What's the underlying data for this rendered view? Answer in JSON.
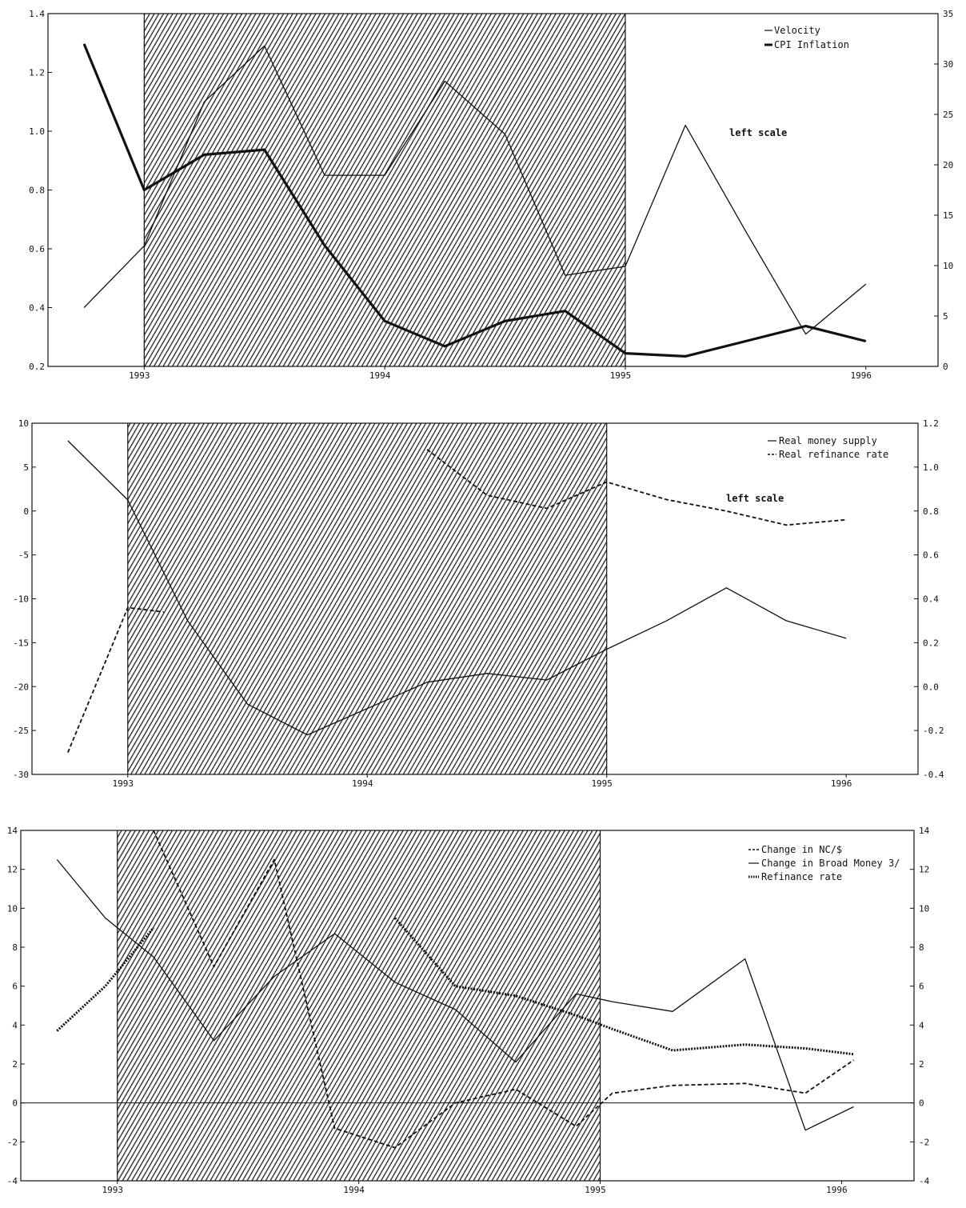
{
  "chart_data": [
    {
      "type": "line",
      "xlim": [
        1992.6,
        1996.3
      ],
      "x_ticks": [
        1993,
        1994,
        1995,
        1996
      ],
      "x_tick_labels": [
        "1993",
        "1994",
        "1995",
        "1996"
      ],
      "shaded_period": [
        1993.0,
        1995.0
      ],
      "left_axis": {
        "ylim": [
          0.2,
          1.4
        ],
        "ticks": [
          0.2,
          0.4,
          0.6,
          0.8,
          1.0,
          1.2,
          1.4
        ],
        "tick_labels": [
          "0.2",
          "0.4",
          "0.6",
          "0.8",
          "1.0",
          "1.2",
          "1.4"
        ]
      },
      "right_axis": {
        "ylim": [
          0,
          35
        ],
        "ticks": [
          0,
          5,
          10,
          15,
          20,
          25,
          30,
          35
        ],
        "tick_labels": [
          "0",
          "5",
          "10",
          "15",
          "20",
          "25",
          "30",
          "35"
        ]
      },
      "series": [
        {
          "name": "Velocity",
          "style": "solid-thin",
          "axis": "left",
          "x": [
            1992.75,
            1993.0,
            1993.25,
            1993.5,
            1993.75,
            1994.0,
            1994.25,
            1994.5,
            1994.75,
            1995.0,
            1995.25,
            1995.5,
            1995.75,
            1996.0
          ],
          "y": [
            0.4,
            0.61,
            1.1,
            1.29,
            0.85,
            0.85,
            1.17,
            0.99,
            0.51,
            0.54,
            1.02,
            0.66,
            0.31,
            0.48
          ]
        },
        {
          "name": "CPI Inflation",
          "style": "solid-thick",
          "axis": "right",
          "x": [
            1992.75,
            1993.0,
            1993.25,
            1993.5,
            1993.75,
            1994.0,
            1994.25,
            1994.5,
            1994.75,
            1995.0,
            1995.25,
            1995.5,
            1995.75,
            1996.0
          ],
          "y": [
            32,
            17.5,
            21,
            21.5,
            12,
            4.5,
            2,
            4.5,
            5.5,
            1.3,
            1,
            2.5,
            4,
            2.5
          ]
        }
      ],
      "legend": [
        "Velocity",
        "CPI Inflation"
      ],
      "legend_position": "top-right",
      "annotation": "left scale"
    },
    {
      "type": "line",
      "xlim": [
        1992.6,
        1996.3
      ],
      "x_ticks": [
        1993,
        1994,
        1995,
        1996
      ],
      "x_tick_labels": [
        "1993",
        "1994",
        "1995",
        "1996"
      ],
      "shaded_period": [
        1993.0,
        1995.0
      ],
      "left_axis": {
        "ylim": [
          -30,
          10
        ],
        "ticks": [
          -30,
          -25,
          -20,
          -15,
          -10,
          -5,
          0,
          5,
          10
        ],
        "tick_labels": [
          "-30",
          "-25",
          "-20",
          "-15",
          "-10",
          "-5",
          "0",
          "5",
          "10"
        ]
      },
      "right_axis": {
        "ylim": [
          -0.4,
          1.2
        ],
        "ticks": [
          -0.4,
          -0.2,
          0.0,
          0.2,
          0.4,
          0.6,
          0.8,
          1.0,
          1.2
        ],
        "tick_labels": [
          "-0.4",
          "-0.2",
          "0.0",
          "0.2",
          "0.4",
          "0.6",
          "0.8",
          "1.0",
          "1.2"
        ]
      },
      "series": [
        {
          "name": "Real money supply",
          "style": "solid-thin",
          "axis": "right",
          "x": [
            1992.75,
            1993.0,
            1993.25,
            1993.5,
            1993.75,
            1994.0,
            1994.25,
            1994.5,
            1994.75,
            1995.0,
            1995.25,
            1995.5,
            1995.75,
            1996.0
          ],
          "y": [
            1.12,
            0.85,
            0.3,
            -0.08,
            -0.22,
            -0.1,
            0.02,
            0.06,
            0.03,
            0.17,
            0.3,
            0.45,
            0.3,
            0.22
          ]
        },
        {
          "name": "Real refinance rate",
          "style": "dashed",
          "axis": "left",
          "segments": [
            {
              "x": [
                1992.75,
                1993.0,
                1993.15
              ],
              "y": [
                -27.5,
                -11,
                -11.5
              ]
            },
            {
              "x": [
                1994.25,
                1994.5,
                1994.75,
                1995.0,
                1995.25,
                1995.5,
                1995.75,
                1996.0
              ],
              "y": [
                7,
                1.8,
                0.3,
                3.3,
                1.3,
                0,
                -1.6,
                -1
              ]
            }
          ]
        }
      ],
      "legend": [
        "Real money supply",
        "Real refinance rate"
      ],
      "legend_position": "top-right",
      "annotation": "left scale"
    },
    {
      "type": "line",
      "xlim": [
        1992.6,
        1996.3
      ],
      "x_ticks": [
        1993,
        1994,
        1995,
        1996
      ],
      "x_tick_labels": [
        "1993",
        "1994",
        "1995",
        "1996"
      ],
      "shaded_period": [
        1993.0,
        1995.0
      ],
      "left_axis": {
        "ylim": [
          -4,
          14
        ],
        "ticks": [
          -4,
          -2,
          0,
          2,
          4,
          6,
          8,
          10,
          12,
          14
        ],
        "tick_labels": [
          "-4",
          "-2",
          "0",
          "2",
          "4",
          "6",
          "8",
          "10",
          "12",
          "14"
        ]
      },
      "right_axis": {
        "ylim": [
          -4,
          14
        ],
        "ticks": [
          -4,
          -2,
          0,
          2,
          4,
          6,
          8,
          10,
          12,
          14
        ],
        "tick_labels": [
          "-4",
          "-2",
          "0",
          "2",
          "4",
          "6",
          "8",
          "10",
          "12",
          "14"
        ]
      },
      "reference_line": 0,
      "series": [
        {
          "name": "Change in NC/$",
          "style": "dashed",
          "segments": [
            {
              "x": [
                1993.15,
                1993.4,
                1993.65,
                1993.9,
                1994.15,
                1994.4,
                1994.65,
                1994.9,
                1995.05,
                1995.3,
                1995.6,
                1995.85,
                1996.05
              ],
              "y": [
                14,
                7,
                12.5,
                -1.3,
                -2.3,
                0,
                0.7,
                -1.2,
                0.5,
                0.9,
                1.0,
                0.5,
                2.2
              ]
            }
          ]
        },
        {
          "name": "Change in Broad Money 3/",
          "style": "solid-thin",
          "x": [
            1992.75,
            1992.95,
            1993.15,
            1993.4,
            1993.65,
            1993.9,
            1994.15,
            1994.4,
            1994.65,
            1994.9,
            1995.05,
            1995.3,
            1995.6,
            1995.85,
            1996.05
          ],
          "y": [
            12.5,
            9.5,
            7.5,
            3.2,
            6.5,
            8.7,
            6.2,
            4.8,
            2.1,
            5.6,
            5.2,
            4.7,
            7.4,
            -1.4,
            -0.2
          ]
        },
        {
          "name": "Refinance rate",
          "style": "dotted-thick",
          "segments": [
            {
              "x": [
                1992.75,
                1992.95,
                1993.15
              ],
              "y": [
                3.7,
                6,
                9
              ]
            },
            {
              "x": [
                1994.15,
                1994.4,
                1994.65,
                1994.9,
                1995.05,
                1995.3,
                1995.6,
                1995.85,
                1996.05
              ],
              "y": [
                9.5,
                6,
                5.5,
                4.5,
                3.8,
                2.7,
                3.0,
                2.8,
                2.5
              ]
            }
          ]
        }
      ],
      "legend": [
        "Change in NC/$",
        "Change in Broad Money 3/",
        "Refinance rate"
      ],
      "legend_position": "top-right"
    }
  ]
}
